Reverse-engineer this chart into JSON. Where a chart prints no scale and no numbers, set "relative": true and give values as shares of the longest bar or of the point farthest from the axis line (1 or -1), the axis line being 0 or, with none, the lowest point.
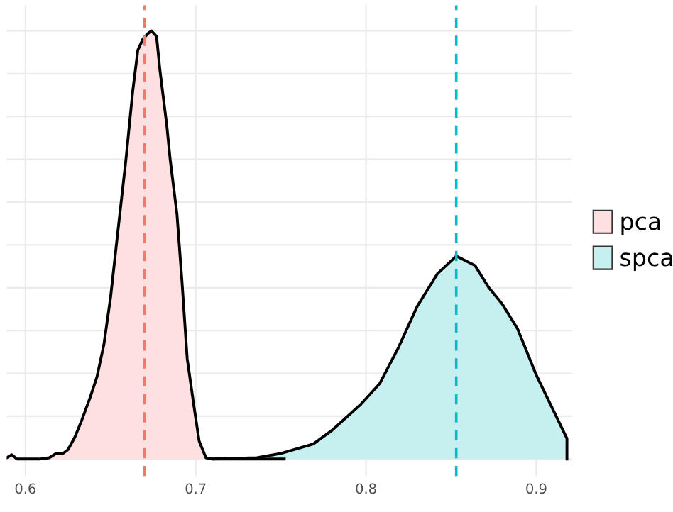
{
  "chart_data": {
    "type": "area",
    "relative": true,
    "xlim": [
      0.589,
      0.921
    ],
    "xticks": [
      0.6,
      0.7,
      0.8,
      0.9
    ],
    "tick_labels": "x",
    "grid": true,
    "legend": "right",
    "series": [
      {
        "name": "pca",
        "color": "#fde0df",
        "x": [
          0.589,
          0.592,
          0.595,
          0.608,
          0.614,
          0.618,
          0.622,
          0.625,
          0.629,
          0.633,
          0.638,
          0.642,
          0.646,
          0.65,
          0.654,
          0.659,
          0.663,
          0.666,
          0.669,
          0.672,
          0.674,
          0.677,
          0.679,
          0.683,
          0.685,
          0.689,
          0.692,
          0.695,
          0.699,
          0.702,
          0.706,
          0.71,
          0.752
        ],
        "values": [
          0.003,
          0.01,
          0,
          0,
          0.003,
          0.013,
          0.013,
          0.022,
          0.051,
          0.09,
          0.144,
          0.192,
          0.266,
          0.378,
          0.522,
          0.699,
          0.859,
          0.955,
          0.981,
          0.994,
          1.0,
          0.987,
          0.907,
          0.779,
          0.699,
          0.571,
          0.41,
          0.234,
          0.122,
          0.042,
          0.003,
          0,
          0
        ]
      },
      {
        "name": "spca",
        "color": "#c6eff0",
        "x": [
          0.71,
          0.736,
          0.75,
          0.769,
          0.78,
          0.797,
          0.808,
          0.819,
          0.83,
          0.842,
          0.853,
          0.864,
          0.872,
          0.88,
          0.889,
          0.9,
          0.909,
          0.918,
          0.918
        ],
        "values": [
          0,
          0.003,
          0.013,
          0.035,
          0.067,
          0.128,
          0.176,
          0.26,
          0.356,
          0.433,
          0.474,
          0.452,
          0.401,
          0.362,
          0.304,
          0.196,
          0.122,
          0.048,
          0
        ]
      }
    ],
    "ref_lines": [
      {
        "axis": "x",
        "value": 0.67,
        "color": "#f8766d",
        "line_style": "dashed"
      },
      {
        "axis": "x",
        "value": 0.853,
        "color": "#00bfc4",
        "line_style": "dashed"
      }
    ]
  }
}
